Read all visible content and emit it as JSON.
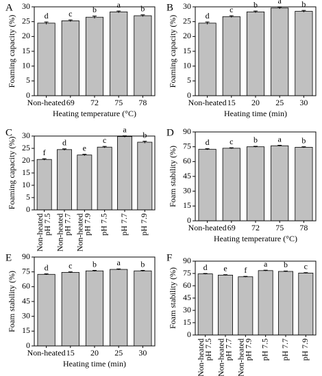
{
  "chart_data": [
    {
      "type": "bar",
      "label": "A",
      "ylabel": "Foaming capacity (%)",
      "xlabel": "Heating temperature (°C)",
      "categories": [
        "Non-heated",
        "69",
        "72",
        "75",
        "78"
      ],
      "values": [
        24.5,
        25.3,
        26.5,
        28.3,
        27.0
      ],
      "errors": [
        0.4,
        0.3,
        0.4,
        0.3,
        0.3
      ],
      "annotations": [
        "d",
        "c",
        "b",
        "a",
        "b"
      ],
      "ylim": [
        0,
        30
      ],
      "yticks": [
        0,
        5,
        10,
        15,
        20,
        25,
        30
      ],
      "color": "#c0c0c0"
    },
    {
      "type": "bar",
      "label": "B",
      "ylabel": "Foaming capacity (%)",
      "xlabel": "Heating time (min)",
      "categories": [
        "Non-heated",
        "15",
        "20",
        "25",
        "30"
      ],
      "values": [
        24.5,
        26.7,
        28.3,
        29.6,
        28.5
      ],
      "errors": [
        0.4,
        0.3,
        0.3,
        0.3,
        0.3
      ],
      "annotations": [
        "d",
        "c",
        "b",
        "a",
        "b"
      ],
      "ylim": [
        0,
        30
      ],
      "yticks": [
        0,
        5,
        10,
        15,
        20,
        25,
        30
      ],
      "color": "#c0c0c0"
    },
    {
      "type": "bar",
      "label": "C",
      "ylabel": "Foaming capacity (%)",
      "categories": [
        [
          "Non-heated",
          "pH 7.5"
        ],
        [
          "Non-heated",
          "pH 7.7"
        ],
        [
          "Non-heated",
          "pH 7.9"
        ],
        [
          "pH 7.5"
        ],
        [
          "pH 7.7"
        ],
        [
          "pH 7.9"
        ]
      ],
      "values": [
        20.5,
        24.5,
        22.3,
        25.5,
        29.8,
        27.5
      ],
      "errors": [
        0.3,
        0.3,
        0.3,
        0.3,
        0.3,
        0.4
      ],
      "annotations": [
        "f",
        "d",
        "e",
        "c",
        "a",
        "b"
      ],
      "ylim": [
        0,
        30
      ],
      "yticks": [
        0,
        5,
        10,
        15,
        20,
        25,
        30
      ],
      "color": "#c0c0c0"
    },
    {
      "type": "bar",
      "label": "D",
      "ylabel": "Foam stability (%)",
      "xlabel": "Heating temperature (°C)",
      "categories": [
        "Non-heated",
        "69",
        "72",
        "75",
        "78"
      ],
      "values": [
        72.5,
        73.5,
        75.0,
        76.0,
        74.5
      ],
      "errors": [
        0.6,
        0.5,
        0.5,
        0.5,
        0.5
      ],
      "annotations": [
        "d",
        "c",
        "b",
        "a",
        "b"
      ],
      "ylim": [
        0,
        90
      ],
      "yticks": [
        0,
        15,
        30,
        45,
        60,
        75,
        90
      ],
      "color": "#c0c0c0"
    },
    {
      "type": "bar",
      "label": "E",
      "ylabel": "Foam stability (%)",
      "xlabel": "Heating time (min)",
      "categories": [
        "Non-heated",
        "15",
        "20",
        "25",
        "30"
      ],
      "values": [
        72.5,
        74.5,
        76.0,
        77.5,
        76.0
      ],
      "errors": [
        0.5,
        0.5,
        0.5,
        0.5,
        0.5
      ],
      "annotations": [
        "d",
        "c",
        "b",
        "a",
        "b"
      ],
      "ylim": [
        0,
        90
      ],
      "yticks": [
        0,
        15,
        30,
        45,
        60,
        75,
        90
      ],
      "color": "#c0c0c0"
    },
    {
      "type": "bar",
      "label": "F",
      "ylabel": "Foam stability (%)",
      "categories": [
        [
          "Non-heated",
          "pH 7.5"
        ],
        [
          "Non-heated",
          "pH 7.7"
        ],
        [
          "Non-heated",
          "pH 7.9"
        ],
        [
          "pH 7.5"
        ],
        [
          "pH 7.7"
        ],
        [
          "pH 7.9"
        ]
      ],
      "values": [
        74.5,
        73.0,
        71.0,
        78.5,
        77.5,
        75.5
      ],
      "errors": [
        0.5,
        0.5,
        0.5,
        0.5,
        0.5,
        0.5
      ],
      "annotations": [
        "d",
        "e",
        "f",
        "a",
        "b",
        "c"
      ],
      "ylim": [
        0,
        90
      ],
      "yticks": [
        0,
        15,
        30,
        45,
        60,
        75,
        90
      ],
      "color": "#c0c0c0"
    }
  ]
}
